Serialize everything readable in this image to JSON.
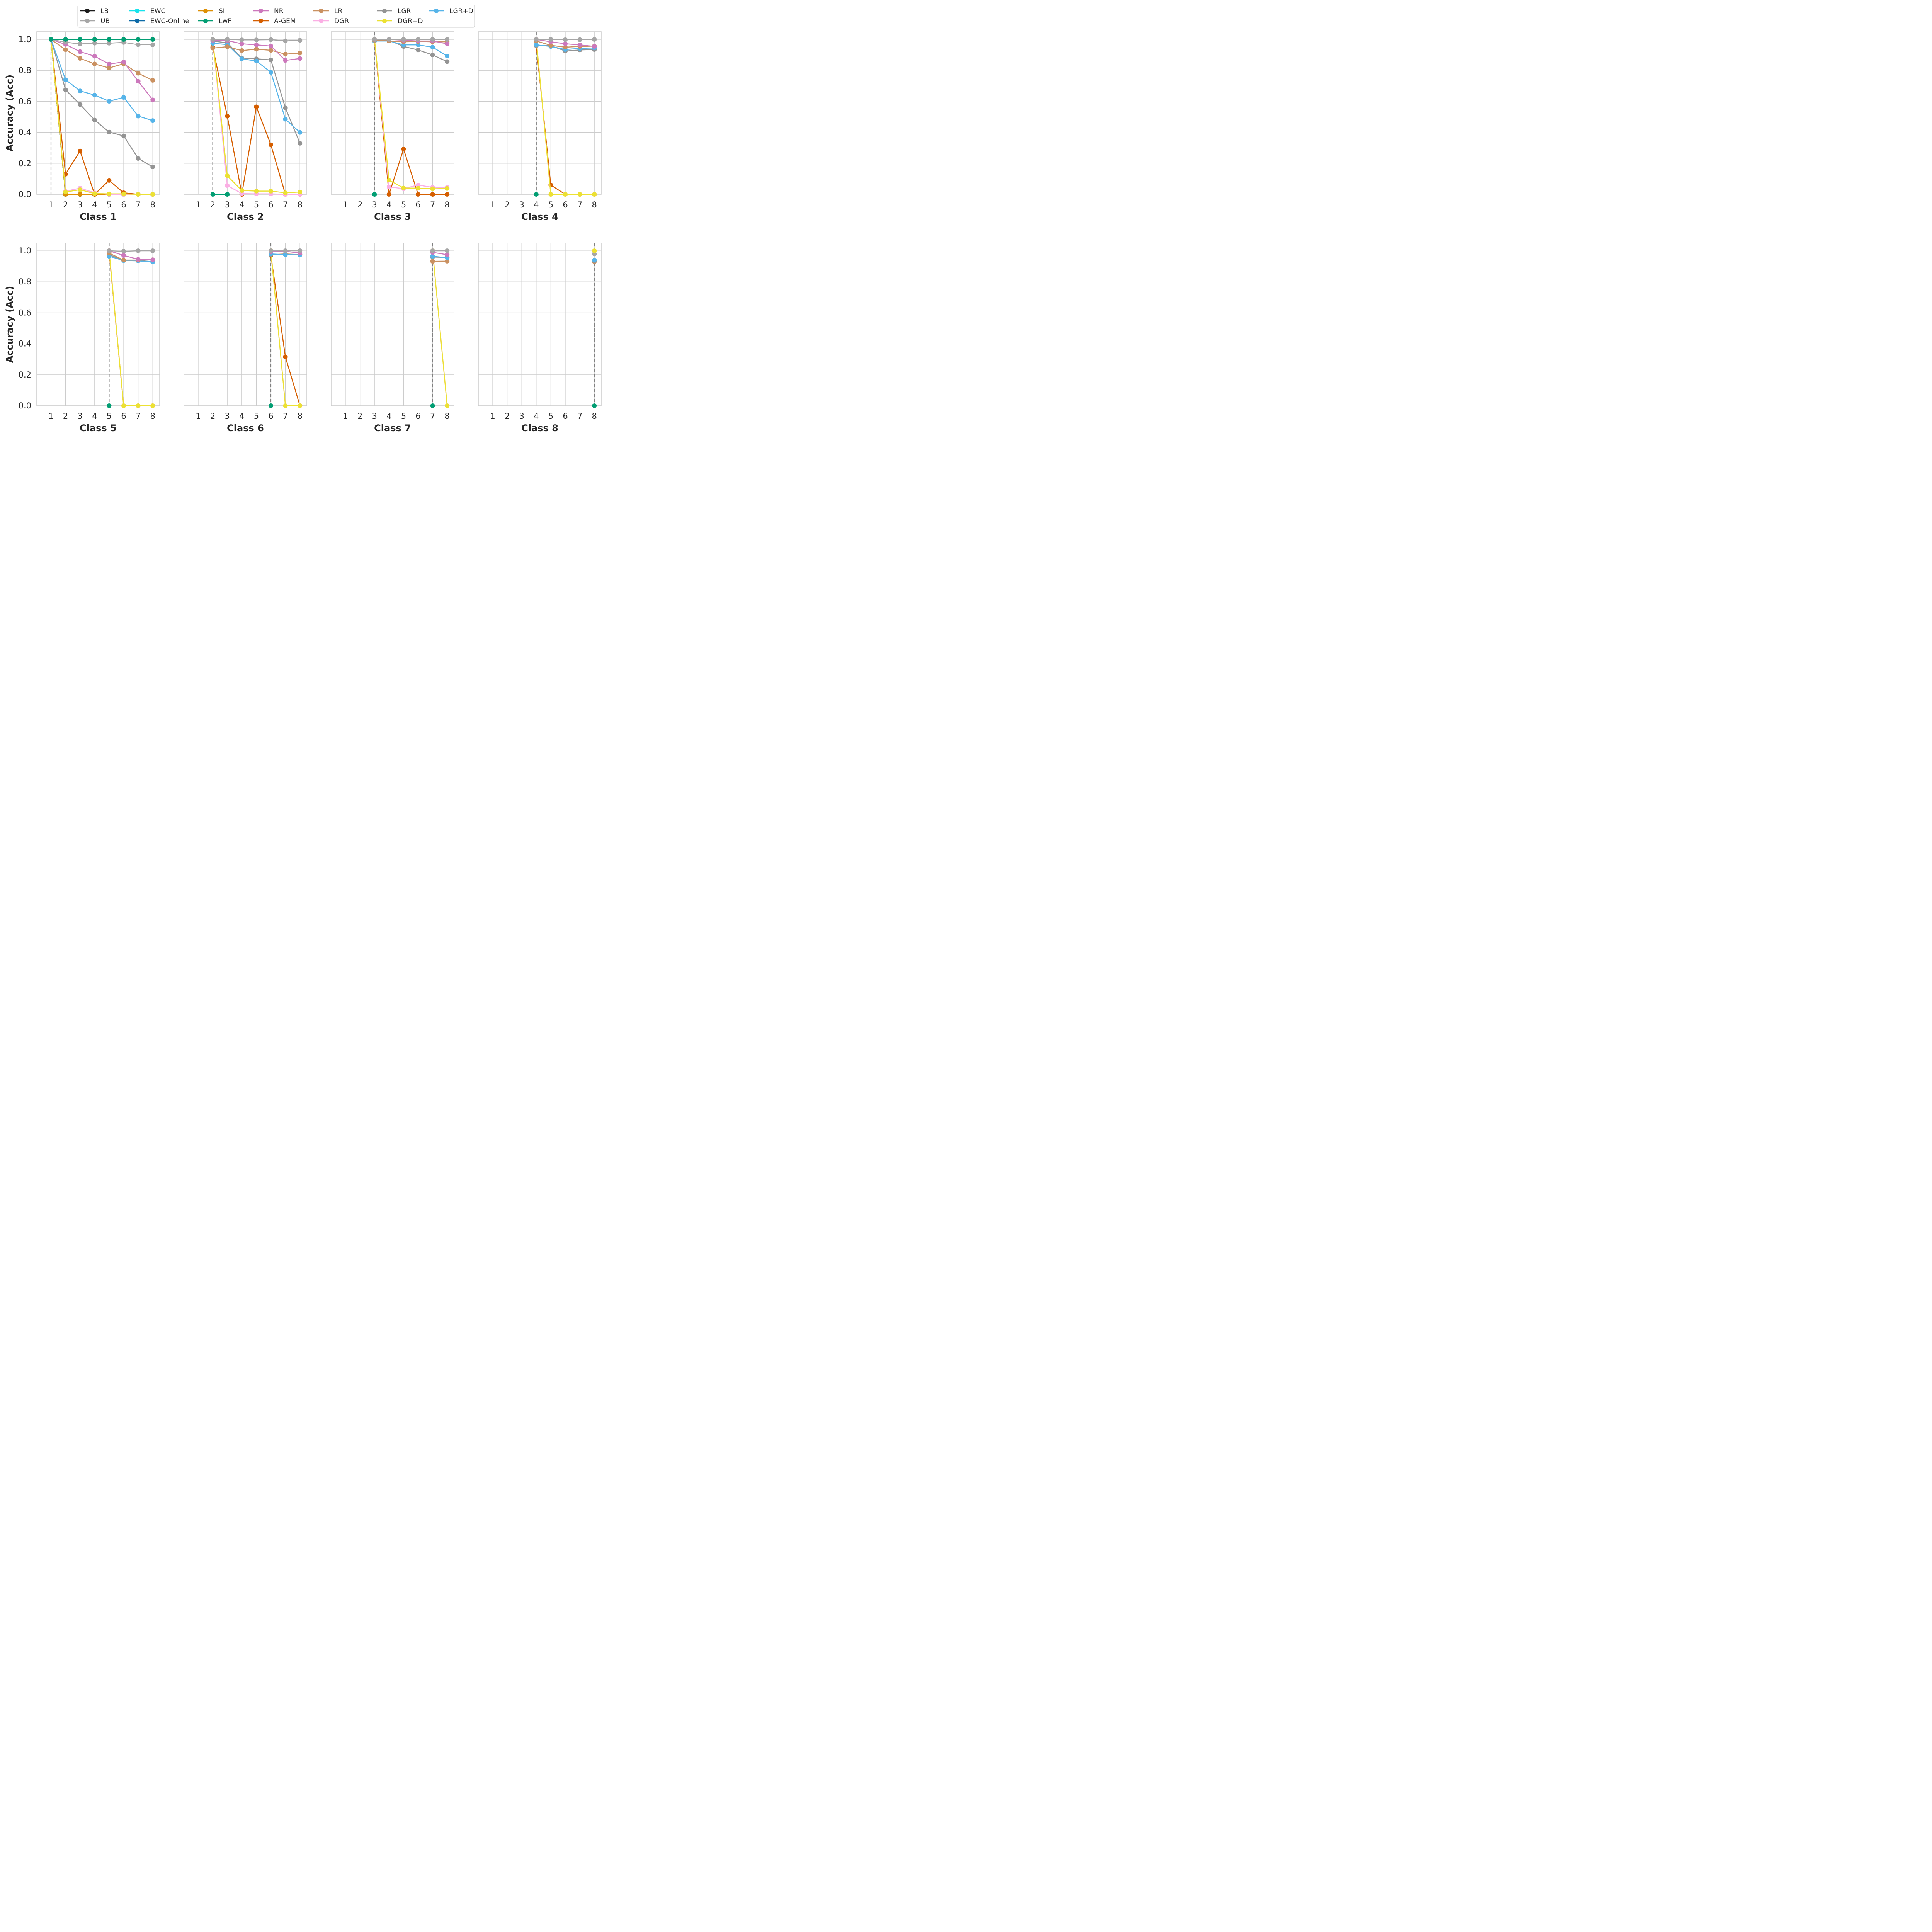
{
  "chart_data": {
    "type": "line",
    "ylabel": "Accuracy (Acc)",
    "ylim": [
      0,
      1.05
    ],
    "yticks": [
      "0.0",
      "0.2",
      "0.4",
      "0.6",
      "0.8",
      "1.0"
    ],
    "x": [
      1,
      2,
      3,
      4,
      5,
      6,
      7,
      8
    ],
    "grid": true,
    "legend_placement": "top",
    "legend": [
      {
        "name": "LB",
        "color": "#1a1a1a"
      },
      {
        "name": "UB",
        "color": "#a6a6a6"
      },
      {
        "name": "EWC",
        "color": "#17e3ec"
      },
      {
        "name": "EWC-Online",
        "color": "#0c6aa8"
      },
      {
        "name": "SI",
        "color": "#de8f05"
      },
      {
        "name": "LwF",
        "color": "#029e73"
      },
      {
        "name": "NR",
        "color": "#cc78bc"
      },
      {
        "name": "A-GEM",
        "color": "#d55e00"
      },
      {
        "name": "LR",
        "color": "#ca9161"
      },
      {
        "name": "DGR",
        "color": "#fbafe4"
      },
      {
        "name": "LGR",
        "color": "#949494"
      },
      {
        "name": "DGR+D",
        "color": "#ece133"
      },
      {
        "name": "LGR+D",
        "color": "#56b4e9"
      }
    ],
    "panels": [
      {
        "title": "Class 1",
        "task_start": 1,
        "series": [
          {
            "name": "LB",
            "start": 1,
            "values": [
              1.0,
              0.0,
              0.0,
              0.0,
              0.0,
              0.0,
              0.0,
              0.0
            ]
          },
          {
            "name": "EWC",
            "start": 1,
            "values": [
              1.0,
              0.0,
              0.0,
              0.0,
              0.0,
              0.0,
              0.0,
              0.0
            ]
          },
          {
            "name": "EWC-Online",
            "start": 1,
            "values": [
              1.0,
              0.0,
              0.0,
              0.0,
              0.0,
              0.0,
              0.0,
              0.0
            ]
          },
          {
            "name": "SI",
            "start": 1,
            "values": [
              1.0,
              0.0,
              0.0,
              0.0,
              0.0,
              0.0,
              0.0,
              0.0
            ]
          },
          {
            "name": "A-GEM",
            "start": 1,
            "values": [
              1.0,
              0.13,
              0.28,
              0.0,
              0.09,
              0.01,
              0.0,
              0.0
            ]
          },
          {
            "name": "DGR",
            "start": 1,
            "values": [
              1.0,
              0.02,
              0.04,
              0.01,
              0.0,
              0.0,
              0.0,
              0.0
            ]
          },
          {
            "name": "DGR+D",
            "start": 1,
            "values": [
              1.0,
              0.015,
              0.03,
              0.005,
              0.003,
              0.003,
              0.0,
              0.0
            ]
          },
          {
            "name": "LGR",
            "start": 1,
            "values": [
              1.0,
              0.675,
              0.58,
              0.48,
              0.402,
              0.377,
              0.232,
              0.177
            ]
          },
          {
            "name": "LGR+D",
            "start": 1,
            "values": [
              1.0,
              0.74,
              0.668,
              0.641,
              0.601,
              0.626,
              0.505,
              0.476
            ]
          },
          {
            "name": "LR",
            "start": 1,
            "values": [
              1.0,
              0.934,
              0.878,
              0.842,
              0.816,
              0.843,
              0.782,
              0.736
            ]
          },
          {
            "name": "NR",
            "start": 1,
            "values": [
              1.0,
              0.968,
              0.921,
              0.892,
              0.841,
              0.855,
              0.73,
              0.61
            ]
          },
          {
            "name": "UB",
            "start": 1,
            "values": [
              1.0,
              0.982,
              0.971,
              0.976,
              0.976,
              0.981,
              0.966,
              0.966
            ]
          },
          {
            "name": "LwF",
            "start": 1,
            "values": [
              1.0,
              1.0,
              1.0,
              1.0,
              1.0,
              1.0,
              1.0,
              1.0
            ]
          }
        ]
      },
      {
        "title": "Class 2",
        "task_start": 2,
        "series": [
          {
            "name": "LwF",
            "start": 2,
            "values": [
              0.0,
              0.0
            ]
          },
          {
            "name": "A-GEM",
            "start": 2,
            "values": [
              0.95,
              0.505,
              0.0,
              0.565,
              0.32,
              0.0,
              0.0
            ]
          },
          {
            "name": "DGR",
            "start": 2,
            "values": [
              1.0,
              0.057,
              0.005,
              0.003,
              0.003,
              0.0,
              0.0
            ]
          },
          {
            "name": "DGR+D",
            "start": 2,
            "values": [
              1.0,
              0.12,
              0.025,
              0.021,
              0.021,
              0.01,
              0.015
            ]
          },
          {
            "name": "LGR",
            "start": 2,
            "values": [
              0.99,
              0.978,
              0.88,
              0.875,
              0.868,
              0.558,
              0.33
            ]
          },
          {
            "name": "LGR+D",
            "start": 2,
            "values": [
              0.975,
              0.967,
              0.875,
              0.861,
              0.788,
              0.485,
              0.4
            ]
          },
          {
            "name": "LR",
            "start": 2,
            "values": [
              0.944,
              0.953,
              0.928,
              0.937,
              0.93,
              0.905,
              0.912
            ]
          },
          {
            "name": "NR",
            "start": 2,
            "values": [
              0.995,
              0.993,
              0.972,
              0.965,
              0.957,
              0.865,
              0.877
            ]
          },
          {
            "name": "UB",
            "start": 2,
            "values": [
              1.0,
              1.0,
              0.997,
              0.997,
              0.998,
              0.991,
              0.995
            ]
          }
        ]
      },
      {
        "title": "Class 3",
        "task_start": 3,
        "series": [
          {
            "name": "LwF",
            "start": 3,
            "values": [
              0.0
            ]
          },
          {
            "name": "A-GEM",
            "start": 3,
            "values": [
              0.995,
              0.0,
              0.292,
              0.0,
              0.0,
              0.0
            ]
          },
          {
            "name": "DGR",
            "start": 3,
            "values": [
              1.0,
              0.048,
              0.037,
              0.06,
              0.045,
              0.045
            ]
          },
          {
            "name": "DGR+D",
            "start": 3,
            "values": [
              1.0,
              0.092,
              0.041,
              0.04,
              0.036,
              0.038
            ]
          },
          {
            "name": "LGR",
            "start": 3,
            "values": [
              0.995,
              0.995,
              0.955,
              0.932,
              0.9,
              0.857
            ]
          },
          {
            "name": "LGR+D",
            "start": 3,
            "values": [
              0.99,
              0.99,
              0.965,
              0.965,
              0.95,
              0.893
            ]
          },
          {
            "name": "LR",
            "start": 3,
            "values": [
              0.995,
              0.99,
              0.985,
              0.987,
              0.985,
              0.985
            ]
          },
          {
            "name": "NR",
            "start": 3,
            "values": [
              1.0,
              1.0,
              0.995,
              0.99,
              0.99,
              0.972
            ]
          },
          {
            "name": "UB",
            "start": 3,
            "values": [
              1.0,
              1.0,
              1.0,
              1.0,
              1.0,
              1.0
            ]
          }
        ]
      },
      {
        "title": "Class 4",
        "task_start": 4,
        "series": [
          {
            "name": "LwF",
            "start": 4,
            "values": [
              0.0
            ]
          },
          {
            "name": "A-GEM",
            "start": 4,
            "values": [
              0.96,
              0.06,
              0.0,
              0.0,
              0.0
            ]
          },
          {
            "name": "DGR",
            "start": 4,
            "values": [
              1.0,
              0.0,
              0.0,
              0.0,
              0.0
            ]
          },
          {
            "name": "DGR+D",
            "start": 4,
            "values": [
              1.0,
              0.0,
              0.0,
              0.0,
              0.0
            ]
          },
          {
            "name": "LGR",
            "start": 4,
            "values": [
              0.96,
              0.96,
              0.925,
              0.932,
              0.935
            ]
          },
          {
            "name": "LGR+D",
            "start": 4,
            "values": [
              0.965,
              0.955,
              0.935,
              0.942,
              0.945
            ]
          },
          {
            "name": "LR",
            "start": 4,
            "values": [
              0.99,
              0.962,
              0.95,
              0.955,
              0.957
            ]
          },
          {
            "name": "NR",
            "start": 4,
            "values": [
              1.0,
              0.985,
              0.972,
              0.965,
              0.955
            ]
          },
          {
            "name": "UB",
            "start": 4,
            "values": [
              1.0,
              1.0,
              0.998,
              0.998,
              1.0
            ]
          }
        ]
      },
      {
        "title": "Class 5",
        "task_start": 5,
        "series": [
          {
            "name": "LwF",
            "start": 5,
            "values": [
              0.0
            ]
          },
          {
            "name": "A-GEM",
            "start": 5,
            "values": [
              0.99,
              0.0,
              0.0,
              0.0
            ]
          },
          {
            "name": "DGR",
            "start": 5,
            "values": [
              1.0,
              0.0,
              0.0,
              0.0
            ]
          },
          {
            "name": "DGR+D",
            "start": 5,
            "values": [
              1.0,
              0.0,
              0.0,
              0.0
            ]
          },
          {
            "name": "LGR",
            "start": 5,
            "values": [
              0.975,
              0.938,
              0.938,
              0.93
            ]
          },
          {
            "name": "LGR+D",
            "start": 5,
            "values": [
              0.965,
              0.937,
              0.935,
              0.928
            ]
          },
          {
            "name": "LR",
            "start": 5,
            "values": [
              0.985,
              0.94,
              0.94,
              0.942
            ]
          },
          {
            "name": "NR",
            "start": 5,
            "values": [
              1.0,
              0.97,
              0.945,
              0.942
            ]
          },
          {
            "name": "UB",
            "start": 5,
            "values": [
              1.0,
              0.997,
              1.0,
              1.0
            ]
          }
        ]
      },
      {
        "title": "Class 6",
        "task_start": 6,
        "series": [
          {
            "name": "LwF",
            "start": 6,
            "values": [
              0.0
            ]
          },
          {
            "name": "A-GEM",
            "start": 6,
            "values": [
              0.97,
              0.315,
              0.0
            ]
          },
          {
            "name": "DGR",
            "start": 6,
            "values": [
              1.0,
              0.0,
              0.0
            ]
          },
          {
            "name": "DGR+D",
            "start": 6,
            "values": [
              1.0,
              0.0,
              0.0
            ]
          },
          {
            "name": "LR",
            "start": 6,
            "values": [
              0.975,
              0.98,
              0.975
            ]
          },
          {
            "name": "LGR",
            "start": 6,
            "values": [
              0.975,
              0.975,
              0.975
            ]
          },
          {
            "name": "LGR+D",
            "start": 6,
            "values": [
              0.98,
              0.975,
              0.973
            ]
          },
          {
            "name": "NR",
            "start": 6,
            "values": [
              0.995,
              0.997,
              0.985
            ]
          },
          {
            "name": "UB",
            "start": 6,
            "values": [
              1.0,
              1.0,
              1.0
            ]
          }
        ]
      },
      {
        "title": "Class 7",
        "task_start": 7,
        "series": [
          {
            "name": "LwF",
            "start": 7,
            "values": [
              0.0
            ]
          },
          {
            "name": "DGR",
            "start": 7,
            "values": [
              1.0,
              0.0
            ]
          },
          {
            "name": "DGR+D",
            "start": 7,
            "values": [
              1.0,
              0.0
            ]
          },
          {
            "name": "LR",
            "start": 7,
            "values": [
              0.932,
              0.933
            ]
          },
          {
            "name": "LGR",
            "start": 7,
            "values": [
              0.96,
              0.957
            ]
          },
          {
            "name": "LGR+D",
            "start": 7,
            "values": [
              0.965,
              0.955
            ]
          },
          {
            "name": "NR",
            "start": 7,
            "values": [
              0.99,
              0.975
            ]
          },
          {
            "name": "UB",
            "start": 7,
            "values": [
              1.0,
              1.0
            ]
          }
        ]
      },
      {
        "title": "Class 8",
        "task_start": 8,
        "series": [
          {
            "name": "LwF",
            "start": 8,
            "values": [
              0.0
            ]
          },
          {
            "name": "LR",
            "start": 8,
            "values": [
              0.93
            ]
          },
          {
            "name": "LGR",
            "start": 8,
            "values": [
              0.935
            ]
          },
          {
            "name": "LGR+D",
            "start": 8,
            "values": [
              0.94
            ]
          },
          {
            "name": "UB",
            "start": 8,
            "values": [
              0.98
            ]
          },
          {
            "name": "DGR+D",
            "start": 8,
            "values": [
              1.0
            ]
          }
        ]
      }
    ]
  }
}
